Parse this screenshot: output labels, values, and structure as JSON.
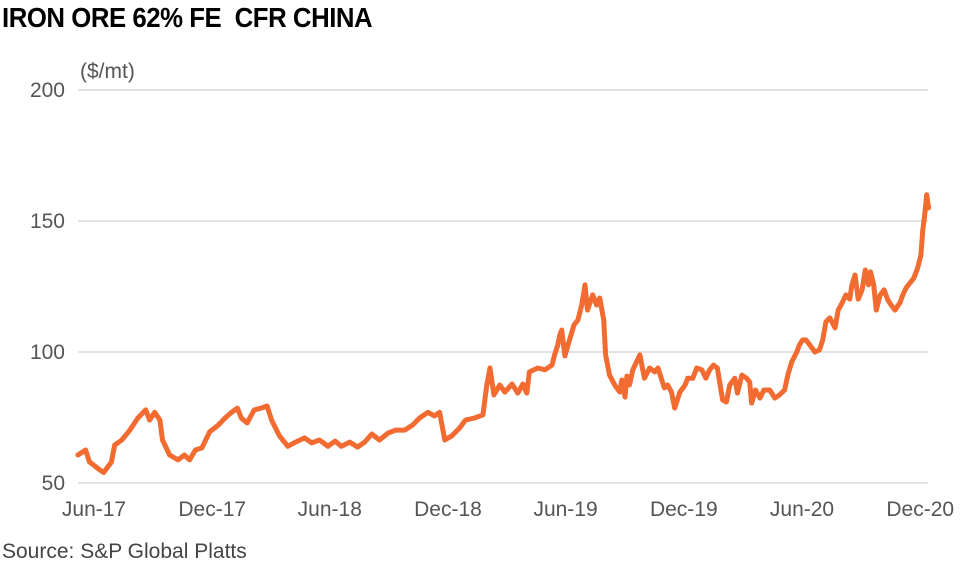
{
  "chart_data": {
    "type": "line",
    "title": "IRON ORE 62% FE  CFR CHINA",
    "ylabel": "($/mt)",
    "xlabel": "",
    "source": "Source: S&P Global Platts",
    "ylim": [
      50,
      200
    ],
    "yticks": [
      50,
      100,
      150,
      200
    ],
    "xticks": [
      {
        "label": "Jun-17",
        "date": "2017-06-01"
      },
      {
        "label": "Dec-17",
        "date": "2017-12-01"
      },
      {
        "label": "Jun-18",
        "date": "2018-06-01"
      },
      {
        "label": "Dec-18",
        "date": "2018-12-01"
      },
      {
        "label": "Jun-19",
        "date": "2019-06-01"
      },
      {
        "label": "Dec-19",
        "date": "2019-12-01"
      },
      {
        "label": "Jun-20",
        "date": "2020-06-01"
      },
      {
        "label": "Dec-20",
        "date": "2020-12-01"
      }
    ],
    "grid": true,
    "line_color": "#f26b30",
    "points": [
      [
        "2017-05-07",
        60.7
      ],
      [
        "2017-05-19",
        62.6
      ],
      [
        "2017-05-25",
        58
      ],
      [
        "2017-06-10",
        55
      ],
      [
        "2017-06-16",
        54
      ],
      [
        "2017-06-28",
        58
      ],
      [
        "2017-07-03",
        64.5
      ],
      [
        "2017-07-14",
        66.4
      ],
      [
        "2017-07-26",
        70
      ],
      [
        "2017-08-08",
        74.8
      ],
      [
        "2017-08-20",
        77.9
      ],
      [
        "2017-08-26",
        74
      ],
      [
        "2017-09-03",
        77
      ],
      [
        "2017-09-11",
        74
      ],
      [
        "2017-09-15",
        66.4
      ],
      [
        "2017-09-26",
        60.7
      ],
      [
        "2017-10-09",
        58.8
      ],
      [
        "2017-10-19",
        60.7
      ],
      [
        "2017-10-27",
        58.8
      ],
      [
        "2017-11-05",
        62.6
      ],
      [
        "2017-11-15",
        63.4
      ],
      [
        "2017-11-27",
        69.5
      ],
      [
        "2017-12-10",
        72
      ],
      [
        "2017-12-21",
        74.8
      ],
      [
        "2017-12-31",
        77
      ],
      [
        "2018-01-09",
        78.6
      ],
      [
        "2018-01-15",
        74.8
      ],
      [
        "2018-01-24",
        72.9
      ],
      [
        "2018-02-04",
        77.9
      ],
      [
        "2018-02-15",
        78.6
      ],
      [
        "2018-02-24",
        79.4
      ],
      [
        "2018-03-03",
        74
      ],
      [
        "2018-03-15",
        68
      ],
      [
        "2018-03-28",
        64
      ],
      [
        "2018-04-09",
        65.6
      ],
      [
        "2018-04-23",
        67.2
      ],
      [
        "2018-05-04",
        65.3
      ],
      [
        "2018-05-16",
        66.4
      ],
      [
        "2018-05-29",
        64
      ],
      [
        "2018-06-09",
        66
      ],
      [
        "2018-06-19",
        64
      ],
      [
        "2018-07-02",
        65.6
      ],
      [
        "2018-07-14",
        63.7
      ],
      [
        "2018-07-25",
        65.6
      ],
      [
        "2018-08-05",
        68.7
      ],
      [
        "2018-08-17",
        66.4
      ],
      [
        "2018-08-30",
        69
      ],
      [
        "2018-09-11",
        70.2
      ],
      [
        "2018-09-25",
        70.2
      ],
      [
        "2018-10-07",
        72.1
      ],
      [
        "2018-10-18",
        74.8
      ],
      [
        "2018-10-31",
        77
      ],
      [
        "2018-11-10",
        75.6
      ],
      [
        "2018-11-18",
        77
      ],
      [
        "2018-11-26",
        66.4
      ],
      [
        "2018-12-07",
        68
      ],
      [
        "2018-12-19",
        71
      ],
      [
        "2018-12-28",
        74
      ],
      [
        "2019-01-11",
        74.8
      ],
      [
        "2019-01-24",
        76
      ],
      [
        "2019-01-30",
        87.4
      ],
      [
        "2019-02-04",
        93.9
      ],
      [
        "2019-02-10",
        83.6
      ],
      [
        "2019-02-19",
        87.4
      ],
      [
        "2019-02-27",
        84.7
      ],
      [
        "2019-03-10",
        87.8
      ],
      [
        "2019-03-19",
        84.3
      ],
      [
        "2019-03-27",
        87.8
      ],
      [
        "2019-04-02",
        84.3
      ],
      [
        "2019-04-06",
        92.4
      ],
      [
        "2019-04-19",
        93.9
      ],
      [
        "2019-04-30",
        93.2
      ],
      [
        "2019-05-11",
        95
      ],
      [
        "2019-05-15",
        98.9
      ],
      [
        "2019-05-20",
        102.7
      ],
      [
        "2019-05-23",
        106.5
      ],
      [
        "2019-05-26",
        108.4
      ],
      [
        "2019-05-31",
        98.5
      ],
      [
        "2019-06-07",
        104.6
      ],
      [
        "2019-06-14",
        110.3
      ],
      [
        "2019-06-20",
        112.2
      ],
      [
        "2019-06-26",
        117.9
      ],
      [
        "2019-07-01",
        125.6
      ],
      [
        "2019-07-05",
        116
      ],
      [
        "2019-07-13",
        121.8
      ],
      [
        "2019-07-19",
        117.9
      ],
      [
        "2019-07-24",
        120.6
      ],
      [
        "2019-07-30",
        112.2
      ],
      [
        "2019-08-02",
        98.9
      ],
      [
        "2019-08-08",
        91.2
      ],
      [
        "2019-08-16",
        87.4
      ],
      [
        "2019-08-24",
        84.7
      ],
      [
        "2019-08-27",
        89.3
      ],
      [
        "2019-09-01",
        82.8
      ],
      [
        "2019-09-04",
        90.8
      ],
      [
        "2019-09-08",
        87.4
      ],
      [
        "2019-09-13",
        93.2
      ],
      [
        "2019-09-24",
        98.9
      ],
      [
        "2019-10-01",
        90
      ],
      [
        "2019-10-09",
        93.9
      ],
      [
        "2019-10-17",
        92.4
      ],
      [
        "2019-10-22",
        93.9
      ],
      [
        "2019-10-28",
        89.3
      ],
      [
        "2019-11-01",
        86.3
      ],
      [
        "2019-11-06",
        87.4
      ],
      [
        "2019-11-12",
        84.7
      ],
      [
        "2019-11-17",
        78.6
      ],
      [
        "2019-11-25",
        84.7
      ],
      [
        "2019-12-03",
        87.4
      ],
      [
        "2019-12-07",
        90
      ],
      [
        "2019-12-15",
        90
      ],
      [
        "2019-12-21",
        93.9
      ],
      [
        "2019-12-29",
        93.2
      ],
      [
        "2020-01-04",
        90
      ],
      [
        "2020-01-10",
        93.2
      ],
      [
        "2020-01-16",
        95
      ],
      [
        "2020-01-22",
        93.9
      ],
      [
        "2020-01-25",
        89.3
      ],
      [
        "2020-01-30",
        81.7
      ],
      [
        "2020-02-05",
        80.9
      ],
      [
        "2020-02-10",
        87.4
      ],
      [
        "2020-02-18",
        90
      ],
      [
        "2020-02-22",
        84.3
      ],
      [
        "2020-02-29",
        91.2
      ],
      [
        "2020-03-07",
        90
      ],
      [
        "2020-03-12",
        88.5
      ],
      [
        "2020-03-15",
        80.5
      ],
      [
        "2020-03-21",
        85.5
      ],
      [
        "2020-03-28",
        82.4
      ],
      [
        "2020-04-03",
        85.5
      ],
      [
        "2020-04-12",
        85.5
      ],
      [
        "2020-04-20",
        82.4
      ],
      [
        "2020-04-27",
        83.6
      ],
      [
        "2020-05-05",
        85.5
      ],
      [
        "2020-05-10",
        91.2
      ],
      [
        "2020-05-16",
        96.2
      ],
      [
        "2020-05-24",
        100
      ],
      [
        "2020-05-28",
        102.7
      ],
      [
        "2020-06-02",
        104.6
      ],
      [
        "2020-06-07",
        104.6
      ],
      [
        "2020-06-13",
        102.7
      ],
      [
        "2020-06-21",
        100
      ],
      [
        "2020-06-28",
        100.8
      ],
      [
        "2020-07-03",
        104.6
      ],
      [
        "2020-07-08",
        111.5
      ],
      [
        "2020-07-14",
        113
      ],
      [
        "2020-07-22",
        109.2
      ],
      [
        "2020-07-27",
        116
      ],
      [
        "2020-08-02",
        118.7
      ],
      [
        "2020-08-08",
        121.8
      ],
      [
        "2020-08-14",
        120.2
      ],
      [
        "2020-08-17",
        125.5
      ],
      [
        "2020-08-22",
        129.4
      ],
      [
        "2020-08-27",
        120.2
      ],
      [
        "2020-09-02",
        123.7
      ],
      [
        "2020-09-07",
        131.3
      ],
      [
        "2020-09-12",
        125.6
      ],
      [
        "2020-09-15",
        130.6
      ],
      [
        "2020-09-20",
        125.6
      ],
      [
        "2020-09-24",
        116
      ],
      [
        "2020-09-30",
        121.8
      ],
      [
        "2020-10-06",
        123.7
      ],
      [
        "2020-10-12",
        119.8
      ],
      [
        "2020-10-17",
        117.9
      ],
      [
        "2020-10-23",
        116
      ],
      [
        "2020-10-31",
        119
      ],
      [
        "2020-11-04",
        121.8
      ],
      [
        "2020-11-09",
        124.4
      ],
      [
        "2020-11-15",
        126.3
      ],
      [
        "2020-11-21",
        128.2
      ],
      [
        "2020-11-27",
        132
      ],
      [
        "2020-12-02",
        137
      ],
      [
        "2020-12-05",
        146.6
      ],
      [
        "2020-12-08",
        152.3
      ],
      [
        "2020-12-11",
        160
      ],
      [
        "2020-12-14",
        155
      ]
    ]
  }
}
